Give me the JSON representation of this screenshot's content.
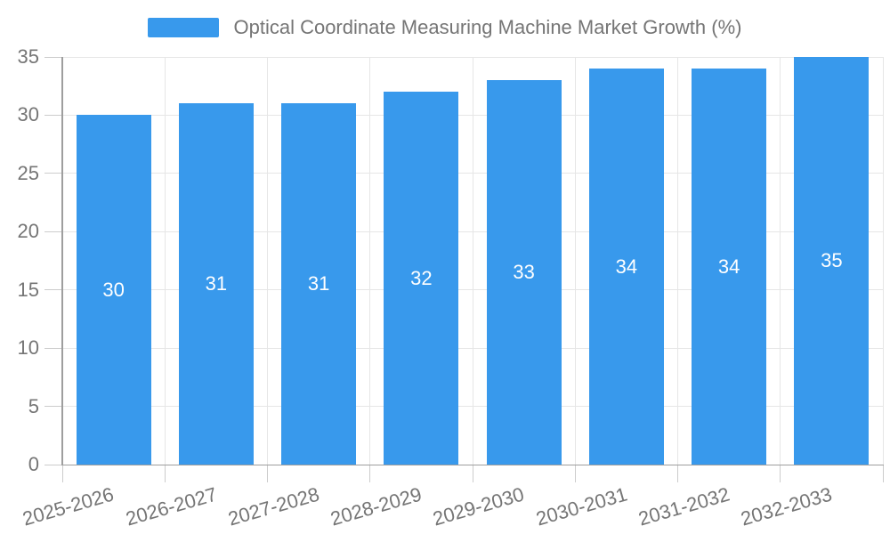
{
  "chart_data": {
    "type": "bar",
    "title": "",
    "legend_label": "Optical Coordinate Measuring Machine Market Growth (%)",
    "categories": [
      "2025-2026",
      "2026-2027",
      "2027-2028",
      "2028-2029",
      "2029-2030",
      "2030-2031",
      "2031-2032",
      "2032-2033"
    ],
    "values": [
      30,
      31,
      31,
      32,
      33,
      34,
      34,
      35
    ],
    "xlabel": "",
    "ylabel": "",
    "ylim": [
      0,
      35
    ],
    "yticks": [
      0,
      5,
      10,
      15,
      20,
      25,
      30,
      35
    ],
    "grid": true,
    "legend_position": "top",
    "bar_value_labels_shown": true
  },
  "colors": {
    "bar": "#3899EC",
    "grid": "#E6E6E6",
    "tick": "#CCCCCC",
    "axis": "#9E9E9E",
    "text": "#757575",
    "bar_label": "#FFFFFF",
    "background": "#FFFFFF"
  }
}
